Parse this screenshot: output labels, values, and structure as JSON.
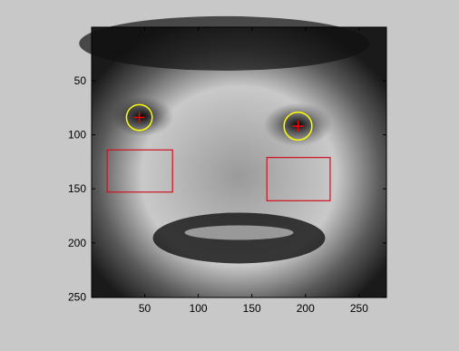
{
  "chart_data": {
    "type": "image",
    "xlim": [
      0.5,
      275.5
    ],
    "ylim": [
      0.5,
      250.5
    ],
    "y_reversed": true,
    "xticks": [
      50,
      100,
      150,
      200,
      250
    ],
    "yticks": [
      50,
      100,
      150,
      200,
      250
    ],
    "circles": [
      {
        "x": 45,
        "y": 84,
        "r": 12,
        "color": "#ffff00"
      },
      {
        "x": 193,
        "y": 92,
        "r": 13,
        "color": "#ffff00"
      }
    ],
    "crosses": [
      {
        "x": 45,
        "y": 84,
        "color": "#ff0000"
      },
      {
        "x": 193,
        "y": 92,
        "color": "#ff0000"
      }
    ],
    "rectangles": [
      {
        "x": 15,
        "y": 114,
        "w": 61,
        "h": 39,
        "color": "#d01020"
      },
      {
        "x": 164,
        "y": 121,
        "w": 59,
        "h": 40,
        "color": "#d01020"
      }
    ]
  }
}
